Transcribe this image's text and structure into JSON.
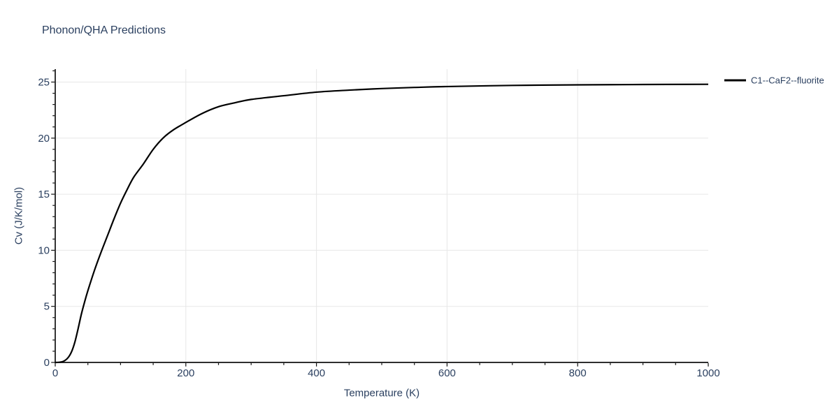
{
  "colors": {
    "text": "#2a3f5f",
    "grid": "#e7e7e7",
    "axis": "#111111",
    "series_line": "#000000",
    "background": "#ffffff"
  },
  "chart_data": {
    "type": "line",
    "title": "Phonon/QHA Predictions",
    "xlabel": "Temperature (K)",
    "ylabel": "Cv (J/K/mol)",
    "xlim": [
      0,
      1000
    ],
    "ylim": [
      0,
      26.15
    ],
    "x_major_ticks": [
      0,
      200,
      400,
      600,
      800,
      1000
    ],
    "x_minor_tick_step": 50,
    "y_major_ticks": [
      0,
      5,
      10,
      15,
      20,
      25
    ],
    "y_minor_tick_step": 1,
    "grid": "major gridlines only, light gray; horizontal at 5..25, vertical at 200..800",
    "legend_position": "top-right outside plot area",
    "series": [
      {
        "name": "C1--CaF2--fluorite",
        "color": "#000000",
        "x": [
          0,
          5,
          10,
          15,
          20,
          25,
          30,
          35,
          40,
          45,
          50,
          60,
          70,
          80,
          90,
          100,
          110,
          120,
          135,
          150,
          165,
          180,
          200,
          225,
          250,
          275,
          300,
          350,
          400,
          450,
          500,
          550,
          600,
          700,
          800,
          900,
          1000
        ],
        "y": [
          0,
          0.01,
          0.05,
          0.18,
          0.45,
          0.95,
          1.8,
          3.0,
          4.3,
          5.4,
          6.4,
          8.2,
          9.8,
          11.3,
          12.8,
          14.2,
          15.4,
          16.5,
          17.7,
          19.0,
          20.0,
          20.7,
          21.4,
          22.2,
          22.8,
          23.15,
          23.45,
          23.78,
          24.1,
          24.28,
          24.42,
          24.52,
          24.6,
          24.7,
          24.75,
          24.78,
          24.8
        ]
      }
    ]
  }
}
